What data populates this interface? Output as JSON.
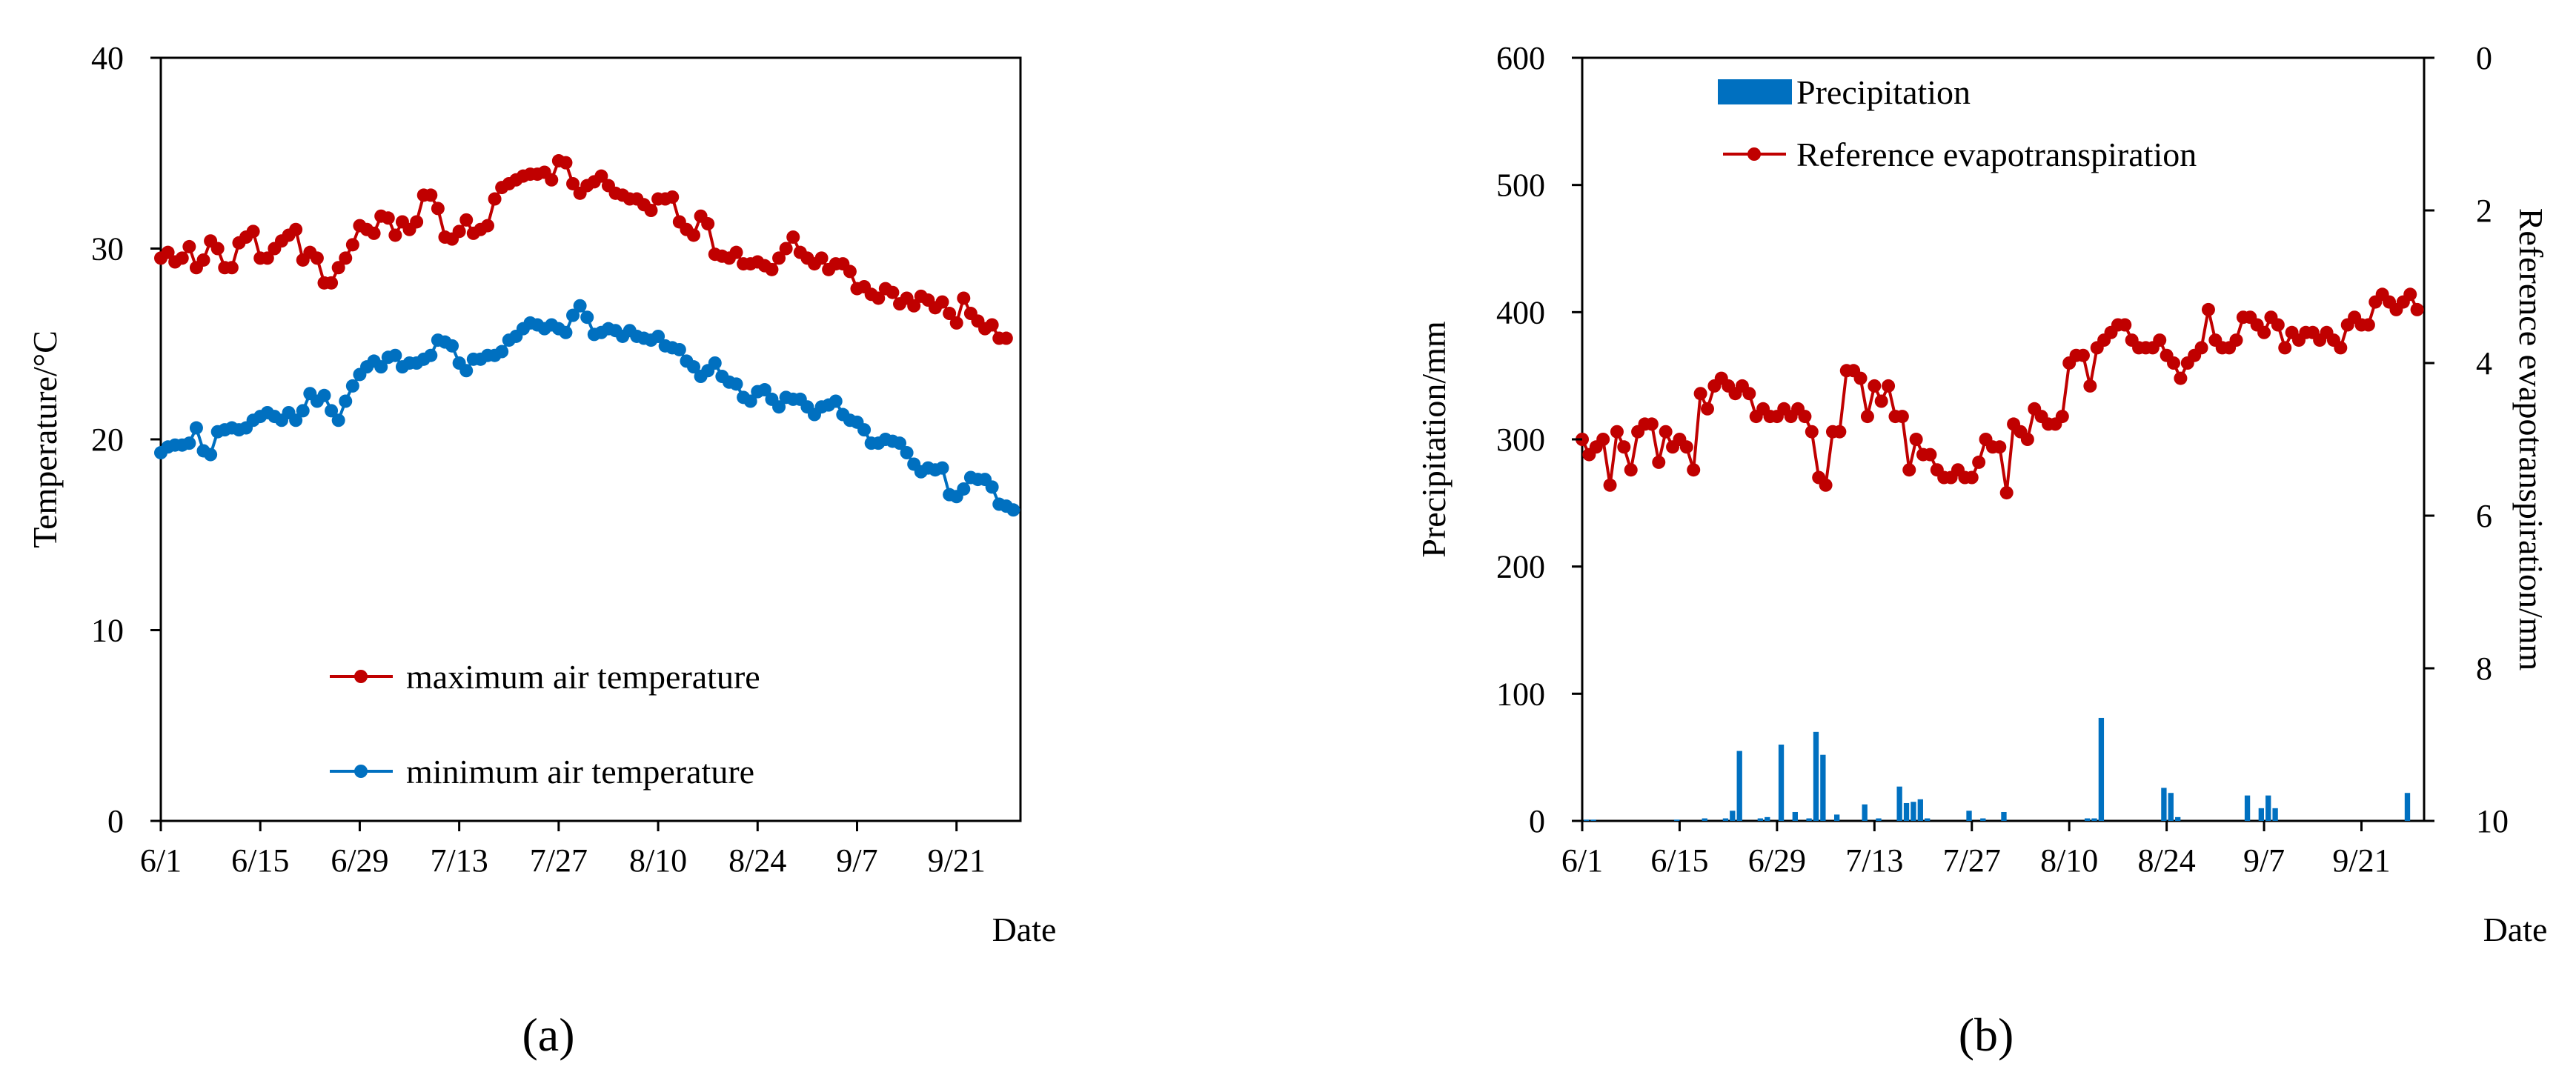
{
  "colors": {
    "red": "#C00000",
    "blue": "#0070C0"
  },
  "chart_data": [
    {
      "id": "a",
      "type": "line",
      "panel_label": "(a)",
      "xlabel": "Date",
      "ylabel": "Temperature/°C",
      "ylim": [
        0,
        40
      ],
      "yticks": [
        "0",
        "10",
        "20",
        "30",
        "40"
      ],
      "xlim": [
        0,
        121
      ],
      "xticks": [
        {
          "day": 0,
          "label": "6/1"
        },
        {
          "day": 14,
          "label": "6/15"
        },
        {
          "day": 28,
          "label": "6/29"
        },
        {
          "day": 42,
          "label": "7/13"
        },
        {
          "day": 56,
          "label": "7/27"
        },
        {
          "day": 70,
          "label": "8/10"
        },
        {
          "day": 84,
          "label": "8/24"
        },
        {
          "day": 98,
          "label": "9/7"
        },
        {
          "day": 112,
          "label": "9/21"
        }
      ],
      "legend_position": "bottom-center",
      "series": [
        {
          "name": "maximum air temperature",
          "color": "#C00000",
          "values": [
            29.5,
            29.8,
            29.3,
            29.5,
            30.1,
            29.0,
            29.4,
            30.4,
            30.0,
            29.0,
            29.0,
            30.3,
            30.6,
            30.9,
            29.5,
            29.5,
            30.0,
            30.4,
            30.7,
            31.0,
            29.4,
            29.8,
            29.5,
            28.2,
            28.2,
            29.0,
            29.5,
            30.2,
            31.2,
            31.0,
            30.8,
            31.7,
            31.6,
            30.7,
            31.4,
            31.0,
            31.4,
            32.8,
            32.8,
            32.1,
            30.6,
            30.5,
            30.9,
            31.5,
            30.8,
            31.0,
            31.2,
            32.6,
            33.2,
            33.4,
            33.6,
            33.8,
            33.9,
            33.9,
            34.0,
            33.6,
            34.6,
            34.5,
            33.4,
            32.9,
            33.3,
            33.5,
            33.8,
            33.3,
            32.9,
            32.8,
            32.6,
            32.6,
            32.3,
            32.0,
            32.6,
            32.6,
            32.7,
            31.4,
            31.0,
            30.7,
            31.7,
            31.3,
            29.7,
            29.6,
            29.5,
            29.8,
            29.2,
            29.2,
            29.3,
            29.1,
            28.9,
            29.5,
            30.0,
            30.6,
            29.8,
            29.5,
            29.2,
            29.5,
            28.9,
            29.2,
            29.2,
            28.8,
            27.9,
            28.0,
            27.6,
            27.4,
            27.9,
            27.7,
            27.1,
            27.4,
            27.0,
            27.5,
            27.3,
            26.9,
            27.2,
            26.6,
            26.1,
            27.4,
            26.6,
            26.2,
            25.8,
            26.0,
            25.3,
            25.3
          ]
        },
        {
          "name": "minimum air temperature",
          "color": "#0070C0",
          "values": [
            19.3,
            19.6,
            19.7,
            19.7,
            19.8,
            20.6,
            19.4,
            19.2,
            20.4,
            20.5,
            20.6,
            20.5,
            20.6,
            21.0,
            21.2,
            21.4,
            21.2,
            21.0,
            21.4,
            21.0,
            21.5,
            22.4,
            22.0,
            22.3,
            21.5,
            21.0,
            22.0,
            22.8,
            23.4,
            23.8,
            24.1,
            23.8,
            24.3,
            24.4,
            23.8,
            24.0,
            24.0,
            24.2,
            24.4,
            25.2,
            25.1,
            24.9,
            24.0,
            23.6,
            24.2,
            24.2,
            24.4,
            24.4,
            24.6,
            25.2,
            25.4,
            25.8,
            26.1,
            26.0,
            25.8,
            26.0,
            25.8,
            25.6,
            26.5,
            27.0,
            26.4,
            25.5,
            25.6,
            25.8,
            25.7,
            25.4,
            25.7,
            25.4,
            25.3,
            25.2,
            25.4,
            24.9,
            24.8,
            24.7,
            24.1,
            23.8,
            23.3,
            23.6,
            24.0,
            23.3,
            23.0,
            22.9,
            22.2,
            22.0,
            22.5,
            22.6,
            22.1,
            21.7,
            22.2,
            22.1,
            22.1,
            21.7,
            21.3,
            21.7,
            21.8,
            22.0,
            21.3,
            21.0,
            20.9,
            20.5,
            19.8,
            19.8,
            20.0,
            19.9,
            19.8,
            19.3,
            18.7,
            18.3,
            18.5,
            18.4,
            18.5,
            17.1,
            17.0,
            17.4,
            18.0,
            17.9,
            17.9,
            17.5,
            16.6,
            16.5,
            16.3
          ]
        }
      ]
    },
    {
      "id": "b",
      "type": "bar+line",
      "panel_label": "(b)",
      "xlabel": "Date",
      "ylabel": "Precipitation/mm",
      "y2label": "Reference evapotranspiration/mm",
      "ylim": [
        0,
        600
      ],
      "yticks": [
        "0",
        "100",
        "200",
        "300",
        "400",
        "500",
        "600"
      ],
      "y2lim": [
        10,
        0
      ],
      "y2ticks": [
        "0",
        "2",
        "4",
        "6",
        "8",
        "10"
      ],
      "xlim": [
        0,
        121
      ],
      "xticks": [
        {
          "day": 0,
          "label": "6/1"
        },
        {
          "day": 14,
          "label": "6/15"
        },
        {
          "day": 28,
          "label": "6/29"
        },
        {
          "day": 42,
          "label": "7/13"
        },
        {
          "day": 56,
          "label": "7/27"
        },
        {
          "day": 70,
          "label": "8/10"
        },
        {
          "day": 84,
          "label": "8/24"
        },
        {
          "day": 98,
          "label": "9/7"
        },
        {
          "day": 112,
          "label": "9/21"
        }
      ],
      "legend_position": "top-center",
      "precipitation": {
        "name": "Precipitation",
        "color": "#0070C0",
        "bars": [
          {
            "day": 0,
            "value": 1
          },
          {
            "day": 1,
            "value": 1
          },
          {
            "day": 13,
            "value": 1
          },
          {
            "day": 17,
            "value": 2
          },
          {
            "day": 20,
            "value": 2
          },
          {
            "day": 21,
            "value": 8
          },
          {
            "day": 22,
            "value": 55
          },
          {
            "day": 25,
            "value": 2
          },
          {
            "day": 26,
            "value": 3
          },
          {
            "day": 28,
            "value": 60
          },
          {
            "day": 30,
            "value": 7
          },
          {
            "day": 32,
            "value": 2
          },
          {
            "day": 33,
            "value": 70
          },
          {
            "day": 34,
            "value": 52
          },
          {
            "day": 36,
            "value": 5
          },
          {
            "day": 40,
            "value": 13
          },
          {
            "day": 42,
            "value": 2
          },
          {
            "day": 45,
            "value": 27
          },
          {
            "day": 46,
            "value": 14
          },
          {
            "day": 47,
            "value": 15
          },
          {
            "day": 48,
            "value": 17
          },
          {
            "day": 49,
            "value": 2
          },
          {
            "day": 55,
            "value": 8
          },
          {
            "day": 57,
            "value": 2
          },
          {
            "day": 60,
            "value": 7
          },
          {
            "day": 72,
            "value": 2
          },
          {
            "day": 73,
            "value": 2
          },
          {
            "day": 74,
            "value": 81
          },
          {
            "day": 83,
            "value": 26
          },
          {
            "day": 84,
            "value": 22
          },
          {
            "day": 85,
            "value": 3
          },
          {
            "day": 95,
            "value": 20
          },
          {
            "day": 97,
            "value": 10
          },
          {
            "day": 98,
            "value": 20
          },
          {
            "day": 99,
            "value": 10
          },
          {
            "day": 118,
            "value": 22
          }
        ]
      },
      "et0": {
        "name": "Reference evapotranspiration",
        "color": "#C00000",
        "values": [
          5.0,
          5.2,
          5.1,
          5.0,
          5.6,
          4.9,
          5.1,
          5.4,
          4.9,
          4.8,
          4.8,
          5.3,
          4.9,
          5.1,
          5.0,
          5.1,
          5.4,
          4.4,
          4.6,
          4.3,
          4.2,
          4.3,
          4.4,
          4.3,
          4.4,
          4.7,
          4.6,
          4.7,
          4.7,
          4.6,
          4.7,
          4.6,
          4.7,
          4.9,
          5.5,
          5.6,
          4.9,
          4.9,
          4.1,
          4.1,
          4.2,
          4.7,
          4.3,
          4.5,
          4.3,
          4.7,
          4.7,
          5.4,
          5.0,
          5.2,
          5.2,
          5.4,
          5.5,
          5.5,
          5.4,
          5.5,
          5.5,
          5.3,
          5.0,
          5.1,
          5.1,
          5.7,
          4.8,
          4.9,
          5.0,
          4.6,
          4.7,
          4.8,
          4.8,
          4.7,
          4.0,
          3.9,
          3.9,
          4.3,
          3.8,
          3.7,
          3.6,
          3.5,
          3.5,
          3.7,
          3.8,
          3.8,
          3.8,
          3.7,
          3.9,
          4.0,
          4.2,
          4.0,
          3.9,
          3.8,
          3.3,
          3.7,
          3.8,
          3.8,
          3.7,
          3.4,
          3.4,
          3.5,
          3.6,
          3.4,
          3.5,
          3.8,
          3.6,
          3.7,
          3.6,
          3.6,
          3.7,
          3.6,
          3.7,
          3.8,
          3.5,
          3.4,
          3.5,
          3.5,
          3.2,
          3.1,
          3.2,
          3.3,
          3.2,
          3.1,
          3.3
        ]
      }
    }
  ]
}
